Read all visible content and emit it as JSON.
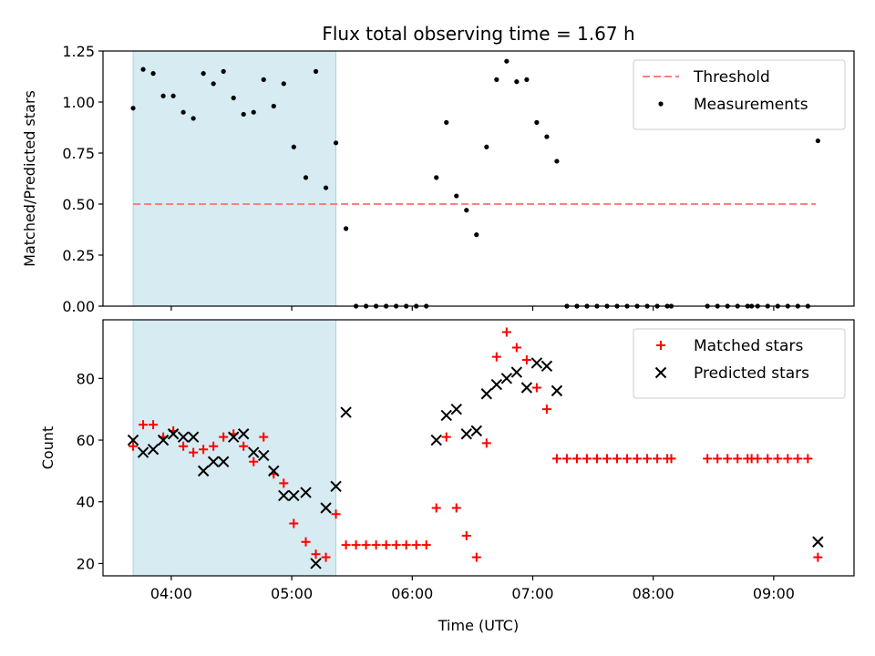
{
  "chart_data": [
    {
      "type": "scatter",
      "title": "Flux total observing time = 1.67 h",
      "xlabel": "",
      "ylabel": "Matched/Predicted stars",
      "xlim": [
        "03:26",
        "09:40"
      ],
      "ylim": [
        0,
        1.25
      ],
      "x_ticks": [
        "04:00",
        "05:00",
        "06:00",
        "07:00",
        "08:00",
        "09:00"
      ],
      "y_ticks": [
        "0.00",
        "0.25",
        "0.50",
        "0.75",
        "1.00",
        "1.25"
      ],
      "shaded_interval": [
        "03:41",
        "05:22"
      ],
      "threshold": {
        "name": "Threshold",
        "value": 0.5,
        "x_range": [
          "03:41",
          "09:21"
        ],
        "color": "#ff7f7f",
        "style": "dashed"
      },
      "legend_position": "top-right",
      "series": [
        {
          "name": "Measurements",
          "marker": "dot",
          "color": "#000000",
          "points": [
            [
              "03:41",
              0.97
            ],
            [
              "03:46",
              1.16
            ],
            [
              "03:51",
              1.14
            ],
            [
              "03:56",
              1.03
            ],
            [
              "04:01",
              1.03
            ],
            [
              "04:06",
              0.95
            ],
            [
              "04:11",
              0.92
            ],
            [
              "04:16",
              1.14
            ],
            [
              "04:21",
              1.09
            ],
            [
              "04:26",
              1.15
            ],
            [
              "04:31",
              1.02
            ],
            [
              "04:36",
              0.94
            ],
            [
              "04:41",
              0.95
            ],
            [
              "04:46",
              1.11
            ],
            [
              "04:51",
              0.98
            ],
            [
              "04:56",
              1.09
            ],
            [
              "05:01",
              0.78
            ],
            [
              "05:07",
              0.63
            ],
            [
              "05:12",
              1.15
            ],
            [
              "05:17",
              0.58
            ],
            [
              "05:22",
              0.8
            ],
            [
              "05:27",
              0.38
            ],
            [
              "05:32",
              0
            ],
            [
              "05:37",
              0
            ],
            [
              "05:42",
              0
            ],
            [
              "05:47",
              0
            ],
            [
              "05:52",
              0
            ],
            [
              "05:57",
              0
            ],
            [
              "06:02",
              0
            ],
            [
              "06:07",
              0
            ],
            [
              "06:12",
              0.63
            ],
            [
              "06:17",
              0.9
            ],
            [
              "06:22",
              0.54
            ],
            [
              "06:27",
              0.47
            ],
            [
              "06:32",
              0.35
            ],
            [
              "06:37",
              0.78
            ],
            [
              "06:42",
              1.11
            ],
            [
              "06:47",
              1.2
            ],
            [
              "06:52",
              1.1
            ],
            [
              "06:57",
              1.11
            ],
            [
              "07:02",
              0.9
            ],
            [
              "07:07",
              0.83
            ],
            [
              "07:12",
              0.71
            ],
            [
              "07:17",
              0
            ],
            [
              "07:22",
              0
            ],
            [
              "07:27",
              0
            ],
            [
              "07:32",
              0
            ],
            [
              "07:37",
              0
            ],
            [
              "07:42",
              0
            ],
            [
              "07:47",
              0
            ],
            [
              "07:52",
              0
            ],
            [
              "07:57",
              0
            ],
            [
              "08:02",
              0
            ],
            [
              "08:07",
              0
            ],
            [
              "08:09",
              0
            ],
            [
              "08:27",
              0
            ],
            [
              "08:32",
              0
            ],
            [
              "08:37",
              0
            ],
            [
              "08:42",
              0
            ],
            [
              "08:47",
              0
            ],
            [
              "08:49",
              0
            ],
            [
              "08:52",
              0
            ],
            [
              "08:57",
              0
            ],
            [
              "09:02",
              0
            ],
            [
              "09:07",
              0
            ],
            [
              "09:12",
              0
            ],
            [
              "09:17",
              0
            ],
            [
              "09:22",
              0.81
            ]
          ]
        }
      ]
    },
    {
      "type": "scatter",
      "title": "",
      "xlabel": "Time (UTC)",
      "ylabel": "Count",
      "xlim": [
        "03:26",
        "09:40"
      ],
      "ylim": [
        16,
        99
      ],
      "x_ticks": [
        "04:00",
        "05:00",
        "06:00",
        "07:00",
        "08:00",
        "09:00"
      ],
      "y_ticks": [
        "20",
        "40",
        "60",
        "80"
      ],
      "shaded_interval": [
        "03:41",
        "05:22"
      ],
      "legend_position": "top-right",
      "series": [
        {
          "name": "Matched stars",
          "marker": "plus",
          "color": "#ff0000",
          "points": [
            [
              "03:41",
              58
            ],
            [
              "03:46",
              65
            ],
            [
              "03:51",
              65
            ],
            [
              "03:56",
              61
            ],
            [
              "04:01",
              63
            ],
            [
              "04:06",
              58
            ],
            [
              "04:11",
              56
            ],
            [
              "04:16",
              57
            ],
            [
              "04:21",
              58
            ],
            [
              "04:26",
              61
            ],
            [
              "04:31",
              62
            ],
            [
              "04:36",
              58
            ],
            [
              "04:41",
              53
            ],
            [
              "04:46",
              61
            ],
            [
              "04:51",
              49
            ],
            [
              "04:56",
              46
            ],
            [
              "05:01",
              33
            ],
            [
              "05:07",
              27
            ],
            [
              "05:12",
              23
            ],
            [
              "05:17",
              22
            ],
            [
              "05:22",
              36
            ],
            [
              "05:27",
              26
            ],
            [
              "05:32",
              26
            ],
            [
              "05:37",
              26
            ],
            [
              "05:42",
              26
            ],
            [
              "05:47",
              26
            ],
            [
              "05:52",
              26
            ],
            [
              "05:57",
              26
            ],
            [
              "06:02",
              26
            ],
            [
              "06:07",
              26
            ],
            [
              "06:12",
              38
            ],
            [
              "06:17",
              61
            ],
            [
              "06:22",
              38
            ],
            [
              "06:27",
              29
            ],
            [
              "06:32",
              22
            ],
            [
              "06:37",
              59
            ],
            [
              "06:42",
              87
            ],
            [
              "06:47",
              95
            ],
            [
              "06:52",
              90
            ],
            [
              "06:57",
              86
            ],
            [
              "07:02",
              77
            ],
            [
              "07:07",
              70
            ],
            [
              "07:12",
              54
            ],
            [
              "07:17",
              54
            ],
            [
              "07:22",
              54
            ],
            [
              "07:27",
              54
            ],
            [
              "07:32",
              54
            ],
            [
              "07:37",
              54
            ],
            [
              "07:42",
              54
            ],
            [
              "07:47",
              54
            ],
            [
              "07:52",
              54
            ],
            [
              "07:57",
              54
            ],
            [
              "08:02",
              54
            ],
            [
              "08:07",
              54
            ],
            [
              "08:09",
              54
            ],
            [
              "08:27",
              54
            ],
            [
              "08:32",
              54
            ],
            [
              "08:37",
              54
            ],
            [
              "08:42",
              54
            ],
            [
              "08:47",
              54
            ],
            [
              "08:49",
              54
            ],
            [
              "08:52",
              54
            ],
            [
              "08:57",
              54
            ],
            [
              "09:02",
              54
            ],
            [
              "09:07",
              54
            ],
            [
              "09:12",
              54
            ],
            [
              "09:17",
              54
            ],
            [
              "09:22",
              22
            ]
          ]
        },
        {
          "name": "Predicted stars",
          "marker": "x",
          "color": "#000000",
          "points": [
            [
              "03:41",
              60
            ],
            [
              "03:46",
              56
            ],
            [
              "03:51",
              57
            ],
            [
              "03:56",
              60
            ],
            [
              "04:01",
              62
            ],
            [
              "04:06",
              61
            ],
            [
              "04:11",
              61
            ],
            [
              "04:16",
              50
            ],
            [
              "04:21",
              53
            ],
            [
              "04:26",
              53
            ],
            [
              "04:31",
              61
            ],
            [
              "04:36",
              62
            ],
            [
              "04:41",
              56
            ],
            [
              "04:46",
              55
            ],
            [
              "04:51",
              50
            ],
            [
              "04:56",
              42
            ],
            [
              "05:01",
              42
            ],
            [
              "05:07",
              43
            ],
            [
              "05:12",
              20
            ],
            [
              "05:17",
              38
            ],
            [
              "05:22",
              45
            ],
            [
              "05:27",
              69
            ],
            [
              "06:12",
              60
            ],
            [
              "06:17",
              68
            ],
            [
              "06:22",
              70
            ],
            [
              "06:27",
              62
            ],
            [
              "06:32",
              63
            ],
            [
              "06:37",
              75
            ],
            [
              "06:42",
              78
            ],
            [
              "06:47",
              80
            ],
            [
              "06:52",
              82
            ],
            [
              "06:57",
              77
            ],
            [
              "07:02",
              85
            ],
            [
              "07:07",
              84
            ],
            [
              "07:12",
              76
            ],
            [
              "09:22",
              27
            ]
          ]
        }
      ]
    }
  ]
}
